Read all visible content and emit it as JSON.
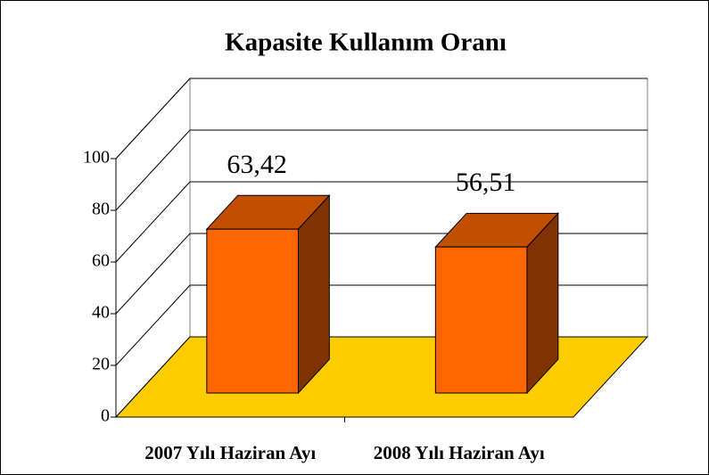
{
  "chart_data": {
    "type": "bar3d",
    "title": "Kapasite Kullanım Oranı",
    "categories": [
      "2007 Yılı Haziran Ayı",
      "2008 Yılı Haziran Ayı"
    ],
    "values": [
      63.42,
      56.51
    ],
    "value_labels": [
      "63,42",
      "56,51"
    ],
    "color": "#ff6600",
    "floor_color": "#ffcc00",
    "ylim": [
      0,
      100
    ],
    "yticks": [
      0,
      20,
      40,
      60,
      80,
      100
    ],
    "grid": true
  }
}
